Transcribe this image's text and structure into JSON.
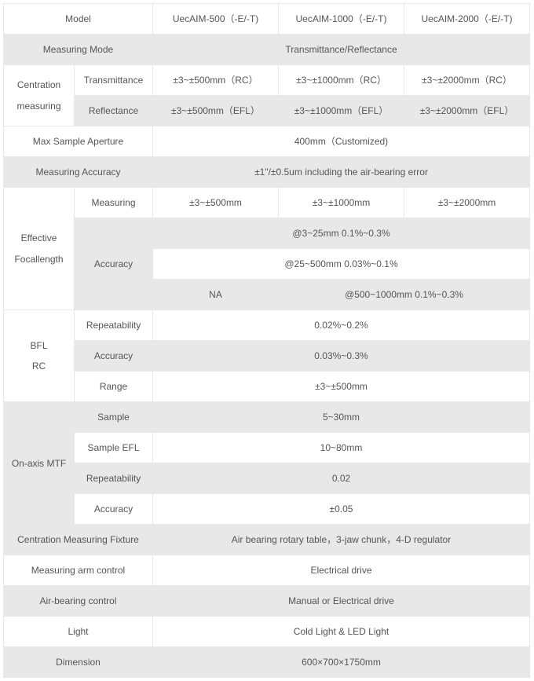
{
  "header": {
    "model_label": "Model",
    "col1": "UecAIM-500（-E/-T)",
    "col2": "UecAIM-1000（-E/-T)",
    "col3": "UecAIM-2000（-E/-T)"
  },
  "rows": {
    "measuring_mode": {
      "label": "Measuring Mode",
      "value": "Transmittance/Reflectance"
    },
    "centration": {
      "label": "Centration measuring",
      "trans_label": "Transmittance",
      "trans_v1": "±3~±500mm（RC）",
      "trans_v2": "±3~±1000mm（RC）",
      "trans_v3": "±3~±2000mm（RC）",
      "refl_label": "Reflectance",
      "refl_v1": "±3~±500mm（EFL）",
      "refl_v2": "±3~±1000mm（EFL）",
      "refl_v3": "±3~±2000mm（EFL）"
    },
    "max_aperture": {
      "label": "Max Sample Aperture",
      "value": "400mm（Customized)"
    },
    "meas_accuracy": {
      "label": "Measuring Accuracy",
      "value": "±1\"/±0.5um including the air-bearing error"
    },
    "efl": {
      "label": "Effective Focallength",
      "measuring_label": "Measuring",
      "m_v1": "±3~±500mm",
      "m_v2": "±3~±1000mm",
      "m_v3": "±3~±2000mm",
      "accuracy_label": "Accuracy",
      "a_r1": "@3~25mm 0.1%~0.3%",
      "a_r2": "@25~500mm 0.03%~0.1%",
      "a_r3_na": "NA",
      "a_r3_val": "@500~1000mm 0.1%~0.3%"
    },
    "bfl": {
      "label": "BFL\nRC",
      "repeatability_label": "Repeatability",
      "repeatability_val": "0.02%~0.2%",
      "accuracy_label": "Accuracy",
      "accuracy_val": "0.03%~0.3%",
      "range_label": "Range",
      "range_val": "±3~±500mm"
    },
    "mtf": {
      "label": "On-axis MTF",
      "sample_label": "Sample",
      "sample_val": "5~30mm",
      "sample_efl_label": "Sample EFL",
      "sample_efl_val": "10~80mm",
      "repeatability_label": "Repeatability",
      "repeatability_val": "0.02",
      "accuracy_label": "Accuracy",
      "accuracy_val": "±0.05"
    },
    "fixture": {
      "label": "Centration Measuring Fixture",
      "value": "Air bearing rotary table，3-jaw chunk，4-D regulator"
    },
    "arm": {
      "label": "Measuring arm control",
      "value": "Electrical drive"
    },
    "airbearing": {
      "label": "Air-bearing control",
      "value": "Manual or Electrical drive"
    },
    "light": {
      "label": "Light",
      "value": "Cold Light & LED Light"
    },
    "dimension": {
      "label": "Dimension",
      "value": "600×700×1750mm"
    }
  }
}
